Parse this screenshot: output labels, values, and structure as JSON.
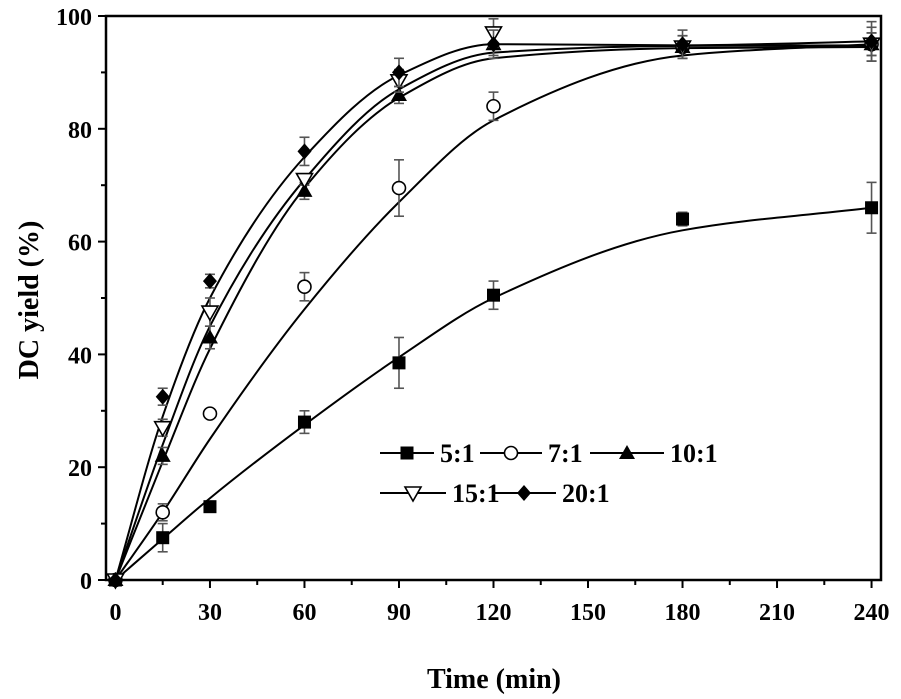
{
  "chart_data": {
    "type": "scatter",
    "title": "",
    "xlabel": "Time (min)",
    "ylabel": "DC yield (%)",
    "xlim": [
      -3,
      243
    ],
    "ylim": [
      0,
      100
    ],
    "xticks": [
      0,
      30,
      60,
      90,
      120,
      150,
      180,
      210,
      240
    ],
    "yticks": [
      0,
      20,
      40,
      60,
      80,
      100
    ],
    "grid": false,
    "legend_position": "center-right",
    "x": [
      0,
      15,
      30,
      60,
      90,
      120,
      180,
      240
    ],
    "series": [
      {
        "name": "5:1",
        "marker": "square-filled",
        "values": [
          0,
          7.5,
          13,
          28,
          38.5,
          50.5,
          64,
          66
        ],
        "errors": [
          0,
          2.5,
          0.5,
          2,
          4.5,
          2.5,
          1.2,
          4.5
        ],
        "fit": [
          0,
          7.3,
          14.5,
          27.5,
          39.5,
          50,
          62,
          66
        ]
      },
      {
        "name": "7:1",
        "marker": "circle-open",
        "values": [
          0,
          12,
          29.5,
          52,
          69.5,
          84,
          94.5,
          95
        ],
        "errors": [
          0,
          1.5,
          0.8,
          2.5,
          5,
          2.5,
          2,
          2
        ],
        "fit": [
          0,
          12,
          25,
          48,
          67,
          81.5,
          93,
          95
        ]
      },
      {
        "name": "10:1",
        "marker": "triangle-filled",
        "values": [
          0,
          22,
          43,
          69,
          86,
          95,
          94.5,
          95
        ],
        "errors": [
          0,
          1.5,
          2,
          1.5,
          1.5,
          2,
          2,
          2
        ],
        "fit": [
          0,
          21,
          41,
          69.5,
          85.5,
          92.5,
          94.3,
          94.5
        ]
      },
      {
        "name": "15:1",
        "marker": "triangle-down-open",
        "values": [
          0,
          27,
          47.5,
          71,
          88.5,
          97,
          94.5,
          95
        ],
        "errors": [
          0,
          1.5,
          2.5,
          1,
          2,
          2.5,
          2,
          3
        ],
        "fit": [
          0,
          24,
          45,
          71,
          87,
          93.5,
          94.7,
          94.8
        ]
      },
      {
        "name": "20:1",
        "marker": "diamond-filled",
        "values": [
          0,
          32.5,
          53,
          76,
          90,
          95,
          95,
          95.5
        ],
        "errors": [
          0,
          1.5,
          1.2,
          2.5,
          2.5,
          2.5,
          2.5,
          3.5
        ],
        "fit": [
          0,
          29,
          50,
          75,
          89.5,
          95,
          94.8,
          95.5
        ]
      }
    ]
  }
}
